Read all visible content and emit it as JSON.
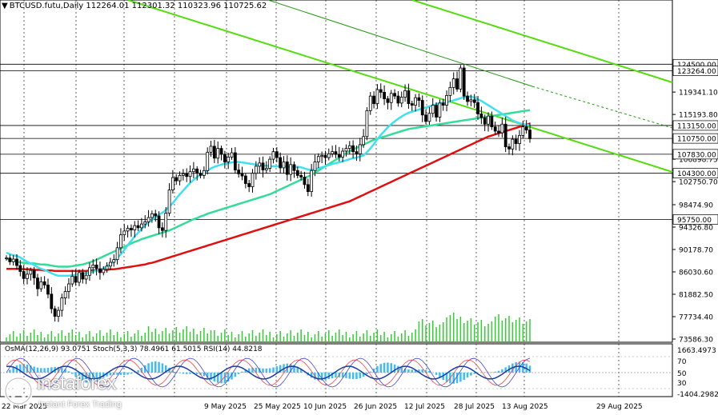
{
  "header": {
    "symbol_line": "BTCUSD.futu,Daily  112264.01 112301.32 110323.96 110725.62"
  },
  "indicators_header": "OsMA(12,26,9) 93.0751  Stoch(5,3,3) 78.4961 61.5015  RSI(14) 44.8218",
  "logo": {
    "word": "instaforex",
    "tagline": "Instant Forex Trading"
  },
  "colors": {
    "candles": "#000000",
    "ma_fast": "#40e0f0",
    "ma_mid": "#33dd99",
    "ma_slow": "#dd1111",
    "channel": "#55dd11",
    "trendline": "#229911",
    "volume": "#33cc33",
    "osma": "#44bbee",
    "rsi": "#1a3fa0",
    "stoch_main": "#4444cc",
    "stoch_signal": "#ee4444"
  },
  "chart_data": {
    "type": "candlestick",
    "symbol": "BTCUSD.futu",
    "timeframe": "Daily",
    "ohlc_last": {
      "open": 112264.01,
      "high": 112301.32,
      "low": 110323.96,
      "close": 110725.62
    },
    "price_axis_ticks": [
      "119341.10",
      "115193.80",
      "106898.75",
      "102750.70",
      "98474.90",
      "94326.80",
      "90178.70",
      "86030.60",
      "81882.50",
      "77734.40",
      "73586.30"
    ],
    "level_labels": [
      "124500.00",
      "123264.00",
      "113150.00",
      "110750.00",
      "107830.00",
      "104300.00",
      "95750.00"
    ],
    "ylim": [
      73586.3,
      126600
    ],
    "x_tick_labels": [
      "22 Mar 2025",
      "",
      "",
      "",
      "9 May 2025",
      "25 May 2025",
      "10 Jun 2025",
      "26 Jun 2025",
      "12 Jul 2025",
      "28 Jul 2025",
      "13 Aug 2025",
      "29 Aug 2025"
    ],
    "closes": [
      88600,
      87900,
      88400,
      87200,
      86100,
      84800,
      85600,
      86300,
      84900,
      82900,
      84200,
      83600,
      81900,
      79200,
      77800,
      78900,
      81200,
      82400,
      83800,
      85200,
      84100,
      85900,
      84700,
      85400,
      86800,
      87300,
      86600,
      85900,
      86500,
      87100,
      87800,
      88300,
      90500,
      92900,
      93600,
      94100,
      93800,
      94600,
      94200,
      94900,
      95300,
      96100,
      96800,
      96400,
      94200,
      93700,
      96900,
      101200,
      103500,
      102900,
      103900,
      104200,
      103700,
      104600,
      105100,
      104300,
      103900,
      104800,
      108200,
      109300,
      107100,
      108900,
      107800,
      106400,
      107300,
      108100,
      104900,
      104200,
      103800,
      102400,
      101800,
      104300,
      105600,
      106200,
      104900,
      105200,
      106900,
      108300,
      107200,
      105300,
      106400,
      104100,
      105900,
      104800,
      103900,
      103600,
      102200,
      100900,
      104800,
      106400,
      107400,
      107600,
      107200,
      107900,
      108300,
      107800,
      107300,
      108400,
      108900,
      109400,
      108300,
      107900,
      109600,
      111100,
      115900,
      118600,
      117200,
      119800,
      119300,
      118100,
      117400,
      119100,
      118600,
      117300,
      118400,
      119600,
      117200,
      116900,
      118300,
      117800,
      115100,
      113900,
      115400,
      116900,
      114700,
      117300,
      116900,
      118700,
      120200,
      121800,
      119900,
      123800,
      118600,
      117600,
      117900,
      117400,
      115300,
      114600,
      113400,
      114900,
      112900,
      112100,
      111800,
      113400,
      109200,
      108800,
      110600,
      109800,
      111300,
      112900,
      112300,
      110700
    ],
    "ma_fast": [
      89600,
      89300,
      89100,
      89000,
      88700,
      88300,
      87900,
      87600,
      87300,
      86900,
      86600,
      86400,
      86100,
      85800,
      85500,
      85300,
      85300,
      85300,
      85300,
      85400,
      85500,
      85600,
      85700,
      85800,
      85900,
      86100,
      86200,
      86400,
      86700,
      87100,
      87500,
      88000,
      88600,
      89300,
      90100,
      91000,
      91800,
      92600,
      93300,
      94000,
      94600,
      95200,
      95700,
      96200,
      96600,
      97000,
      97500,
      98100,
      98800,
      99600,
      100400,
      101100,
      101800,
      102500,
      103100,
      103600,
      104000,
      104400,
      104800,
      105200,
      105500,
      105700,
      105900,
      106100,
      106200,
      106300,
      106400,
      106400,
      106300,
      106200,
      106100,
      106000,
      105900,
      105800,
      105700,
      105700,
      105600,
      105600,
      105600,
      105600,
      105600,
      105500,
      105500,
      105500,
      105500,
      105400,
      105200,
      105000,
      104900,
      105000,
      105200,
      105400,
      105600,
      105800,
      106000,
      106200,
      106300,
      106500,
      106700,
      106900,
      107100,
      107200,
      107400,
      107600,
      108200,
      108900,
      109700,
      110600,
      111400,
      112100,
      112800,
      113400,
      113900,
      114400,
      114800,
      115200,
      115500,
      115700,
      115900,
      116100,
      116300,
      116500,
      116700,
      116900,
      117100,
      117300,
      117400,
      117500,
      117600,
      117800,
      118000,
      118200,
      118400,
      118500,
      118500,
      118300,
      118000,
      117700,
      117300,
      116900,
      116500,
      116100,
      115700,
      115300,
      114900,
      114500,
      114100,
      113800,
      113600,
      113400,
      113300,
      113200
    ],
    "ma_mid": [
      88500,
      88300,
      88100,
      87900,
      87800,
      87700,
      87600,
      87600,
      87600,
      87500,
      87400,
      87400,
      87300,
      87200,
      87100,
      87000,
      87000,
      87000,
      87000,
      87100,
      87200,
      87300,
      87400,
      87600,
      87800,
      88000,
      88300,
      88600,
      88900,
      89200,
      89500,
      89800,
      90100,
      90400,
      90700,
      91000,
      91300,
      91600,
      91800,
      92100,
      92300,
      92500,
      92700,
      92900,
      93100,
      93300,
      93500,
      93700,
      94000,
      94300,
      94600,
      94900,
      95200,
      95500,
      95800,
      96000,
      96300,
      96500,
      96800,
      97000,
      97200,
      97400,
      97600,
      97800,
      98000,
      98200,
      98400,
      98600,
      98800,
      99000,
      99200,
      99400,
      99600,
      99800,
      100000,
      100200,
      100400,
      100700,
      101000,
      101300,
      101600,
      101900,
      102200,
      102500,
      102800,
      103100,
      103400,
      103700,
      104000,
      104400,
      104800,
      105200,
      105600,
      106000,
      106400,
      106800,
      107200,
      107600,
      108000,
      108400,
      108700,
      109000,
      109300,
      109600,
      109900,
      110200,
      110500,
      110700,
      110900,
      111100,
      111300,
      111500,
      111700,
      111900,
      112100,
      112300,
      112500,
      112600,
      112700,
      112800,
      112900,
      113000,
      113100,
      113200,
      113300,
      113400,
      113500,
      113600,
      113700,
      113800,
      113900,
      114000,
      114100,
      114200,
      114300,
      114400,
      114500,
      114600,
      114700,
      114800,
      114900,
      115000,
      115100,
      115200,
      115300,
      115400,
      115500,
      115600,
      115700,
      115800,
      115900,
      116000
    ],
    "ma_slow": [
      86600,
      86600,
      86600,
      86600,
      86600,
      86500,
      86500,
      86500,
      86400,
      86400,
      86400,
      86300,
      86300,
      86300,
      86200,
      86200,
      86200,
      86200,
      86200,
      86200,
      86200,
      86200,
      86200,
      86200,
      86300,
      86300,
      86300,
      86300,
      86400,
      86400,
      86500,
      86500,
      86600,
      86700,
      86800,
      86900,
      87000,
      87100,
      87200,
      87300,
      87400,
      87600,
      87700,
      87900,
      88100,
      88300,
      88500,
      88700,
      88900,
      89100,
      89300,
      89500,
      89700,
      89900,
      90100,
      90300,
      90500,
      90700,
      90900,
      91100,
      91300,
      91500,
      91700,
      91900,
      92100,
      92300,
      92500,
      92700,
      92900,
      93100,
      93300,
      93500,
      93700,
      93900,
      94100,
      94300,
      94500,
      94700,
      94900,
      95100,
      95300,
      95500,
      95700,
      95900,
      96100,
      96300,
      96500,
      96700,
      96900,
      97100,
      97300,
      97500,
      97700,
      97900,
      98100,
      98300,
      98500,
      98700,
      98900,
      99100,
      99400,
      99700,
      100000,
      100300,
      100600,
      100900,
      101200,
      101500,
      101800,
      102100,
      102400,
      102700,
      103000,
      103300,
      103600,
      103900,
      104200,
      104500,
      104800,
      105100,
      105400,
      105700,
      106000,
      106300,
      106600,
      106900,
      107200,
      107500,
      107800,
      108100,
      108400,
      108700,
      109000,
      109300,
      109600,
      109900,
      110200,
      110500,
      110800,
      111100,
      111300,
      111500,
      111700,
      111900,
      112100,
      112300,
      112500,
      112700,
      112900,
      113100,
      113300,
      113500
    ]
  }
}
